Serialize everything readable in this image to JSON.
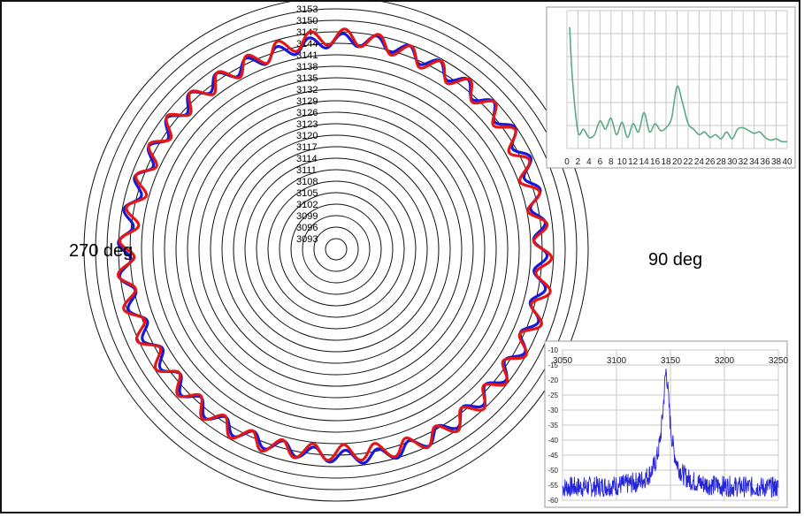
{
  "chart_data": [
    {
      "type": "line",
      "subtype": "polar",
      "angle_labels": {
        "left": "270 deg",
        "right": "90 deg"
      },
      "radial_ticks": [
        3093,
        3096,
        3099,
        3102,
        3105,
        3108,
        3111,
        3114,
        3117,
        3120,
        3123,
        3126,
        3129,
        3132,
        3135,
        3138,
        3141,
        3144,
        3147,
        3150,
        3153
      ],
      "r_range": [
        3090,
        3156
      ],
      "series": [
        {
          "color": "#1a1ad6",
          "mean": 3144.5,
          "amplitude": 1.7,
          "harmonics": 40
        },
        {
          "color": "#e01818",
          "mean": 3144.5,
          "amplitude": 2.1,
          "harmonics": 40
        }
      ],
      "grid": true
    },
    {
      "type": "line",
      "x_ticks": [
        "0",
        "2",
        "4",
        "6",
        "8",
        "10",
        "12",
        "14",
        "16",
        "18",
        "20",
        "22",
        "24",
        "26",
        "28",
        "30",
        "32",
        "34",
        "36",
        "38",
        "40"
      ],
      "xlim": [
        0,
        40
      ],
      "ylim": [
        0,
        1
      ],
      "color": "#5aa983",
      "x": [
        0.5,
        1,
        2,
        3,
        4,
        5,
        6,
        7,
        8,
        9,
        10,
        11,
        12,
        13,
        14,
        15,
        16,
        17,
        18,
        19,
        20,
        21,
        22,
        23,
        24,
        25,
        26,
        27,
        28,
        29,
        30,
        31,
        32,
        33,
        34,
        35,
        36,
        37,
        38,
        39,
        40
      ],
      "values": [
        0.88,
        0.5,
        0.12,
        0.14,
        0.08,
        0.1,
        0.2,
        0.14,
        0.22,
        0.1,
        0.19,
        0.08,
        0.18,
        0.12,
        0.26,
        0.12,
        0.18,
        0.13,
        0.15,
        0.22,
        0.45,
        0.33,
        0.18,
        0.14,
        0.1,
        0.12,
        0.08,
        0.1,
        0.07,
        0.12,
        0.07,
        0.14,
        0.15,
        0.13,
        0.11,
        0.12,
        0.08,
        0.06,
        0.07,
        0.05,
        0.05
      ],
      "grid": true
    },
    {
      "type": "line",
      "x_ticks": [
        "3050",
        "3100",
        "3150",
        "3200",
        "3250"
      ],
      "y_ticks": [
        "-10",
        "-15",
        "-20",
        "-25",
        "-30",
        "-35",
        "-40",
        "-45",
        "-50",
        "-55",
        "-60"
      ],
      "xlim": [
        3050,
        3250
      ],
      "ylim": [
        -60,
        -10
      ],
      "color": "#2424d8",
      "peak_x": 3146,
      "peak_y": -17,
      "noise_floor": -56,
      "grid": true
    }
  ]
}
